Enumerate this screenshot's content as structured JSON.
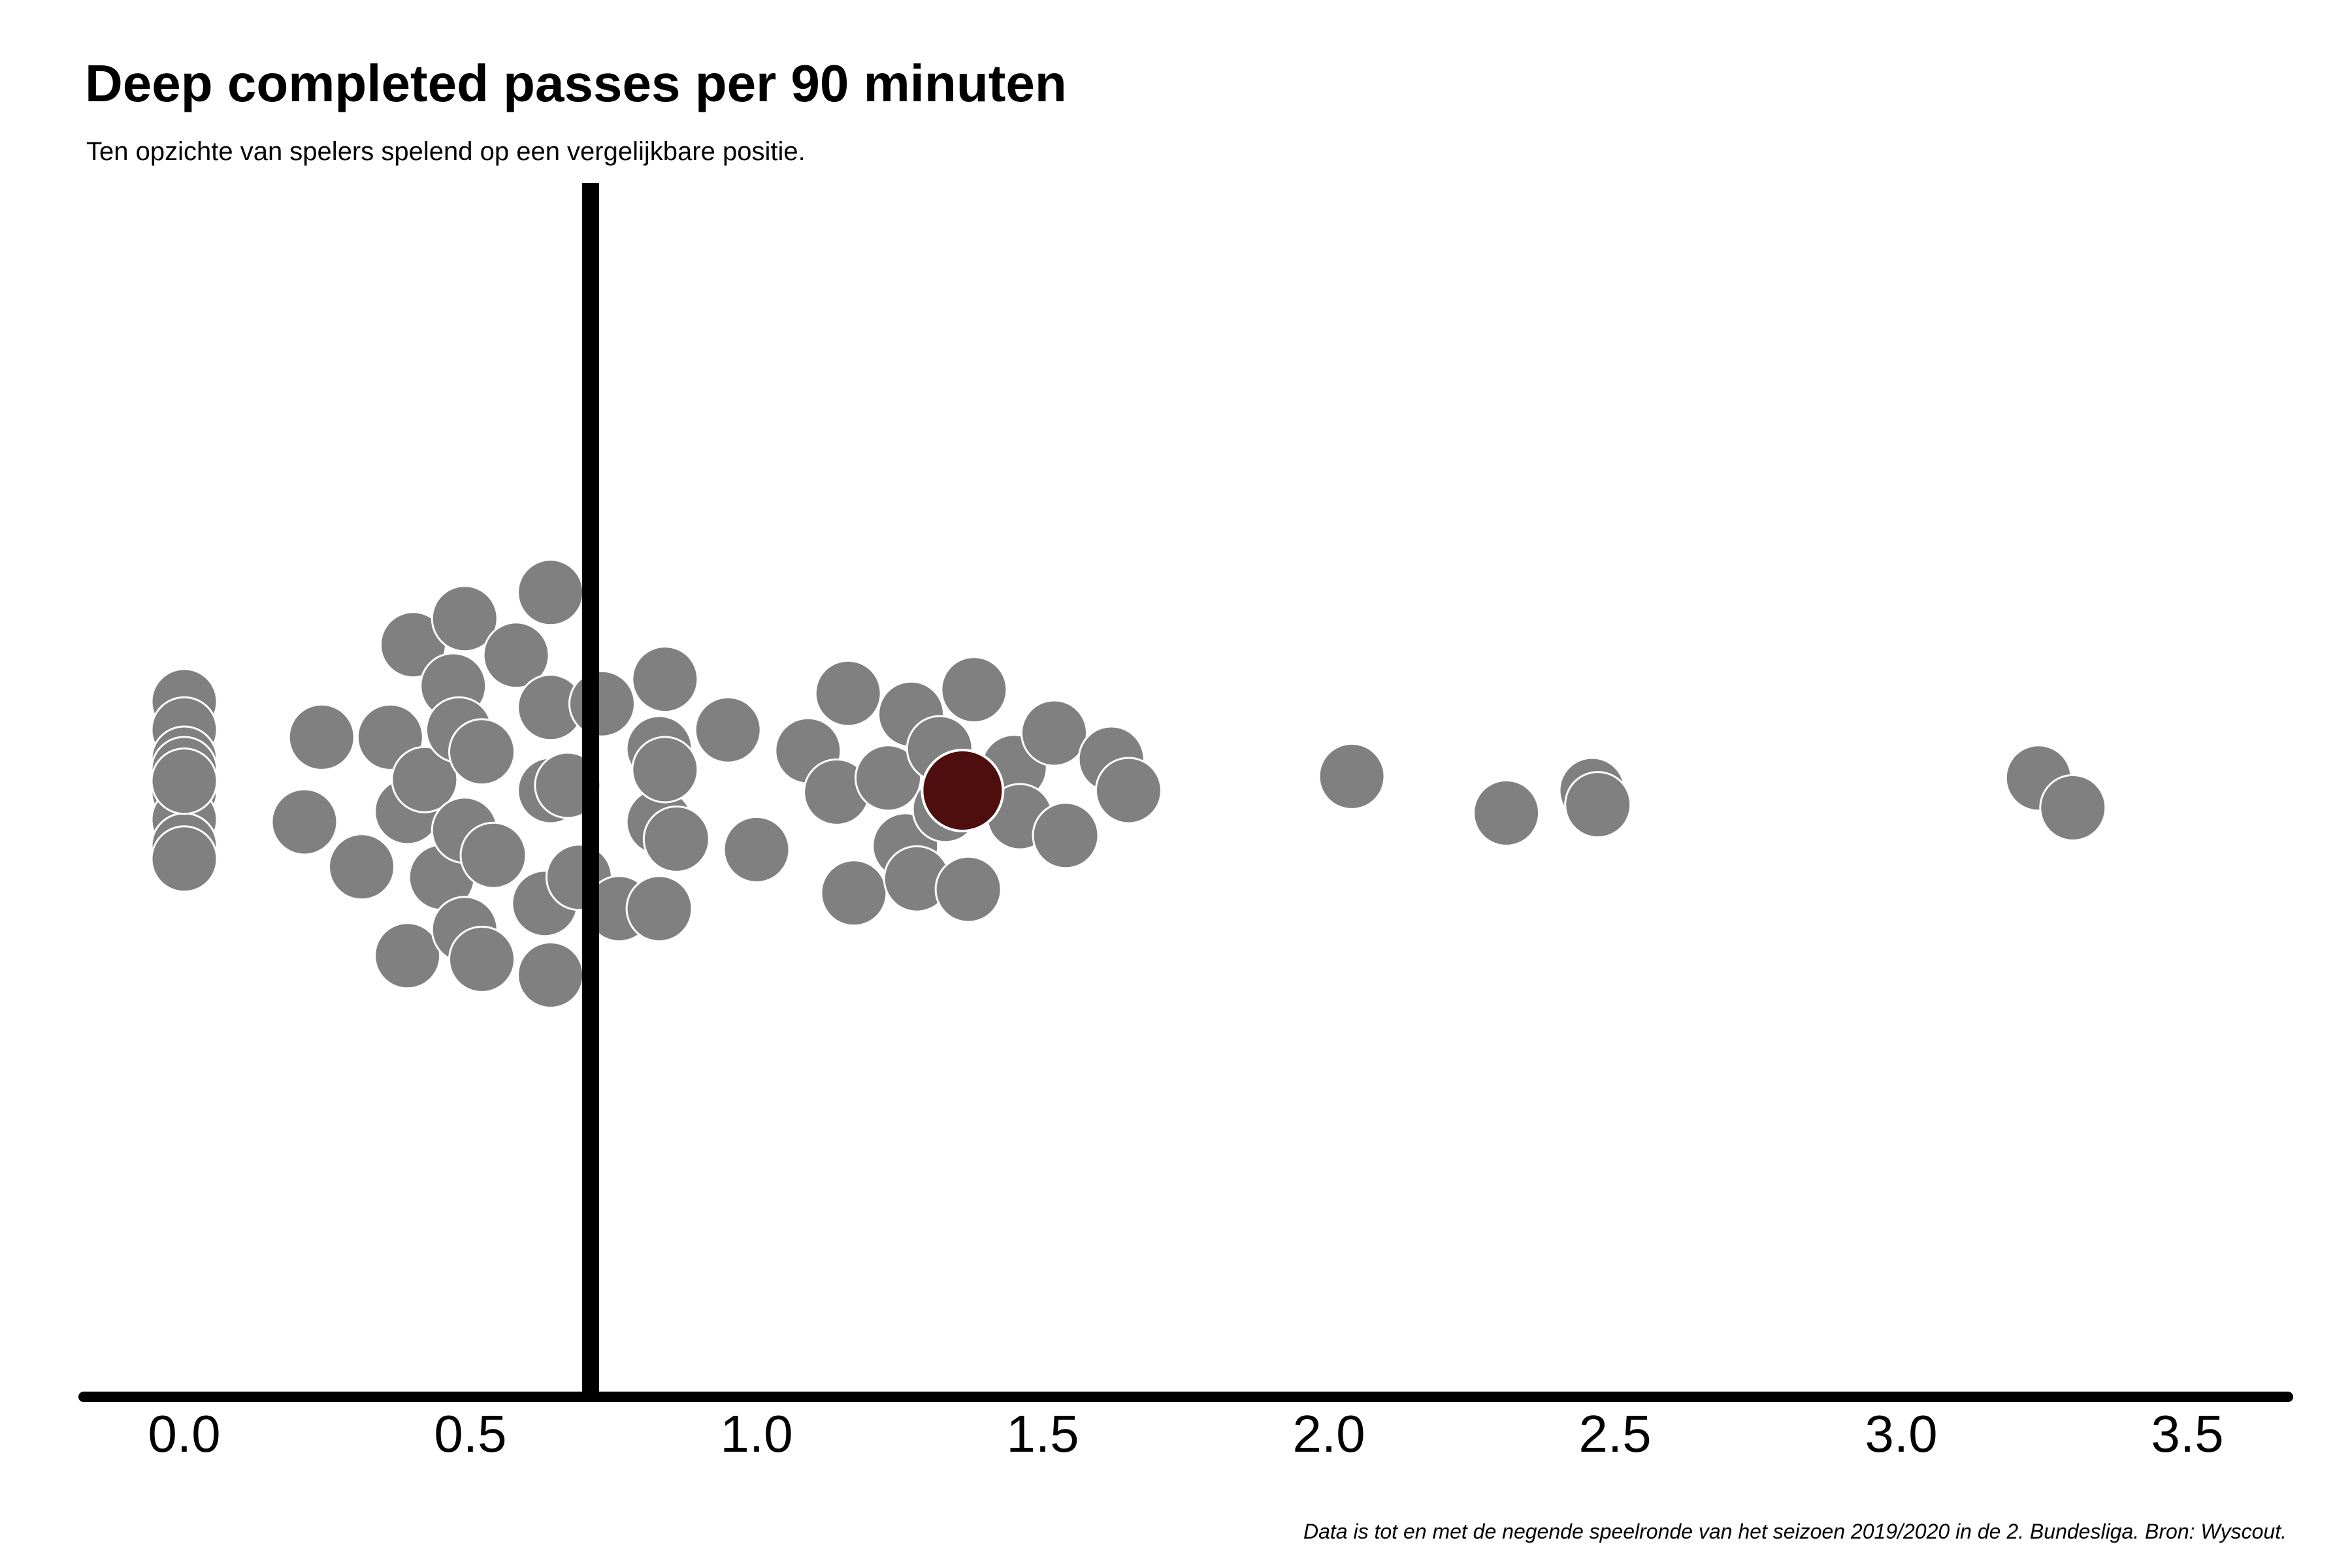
{
  "chart_data": {
    "type": "scatter",
    "subtype": "beeswarm",
    "title": "Deep completed passes per 90 minuten",
    "subtitle": "Ten opzichte van spelers spelend op een vergelijkbare positie.",
    "caption": "Data is tot en met de negende speelronde van het seizoen 2019/2020 in de 2. Bundesliga. Bron: Wyscout.",
    "xlabel": "",
    "ylabel": "",
    "xlim": [
      -0.17,
      3.65
    ],
    "x_ticks": [
      0.0,
      0.5,
      1.0,
      1.5,
      2.0,
      2.5,
      3.0,
      3.5
    ],
    "x_tick_labels": [
      "0.0",
      "0.5",
      "1.0",
      "1.5",
      "2.0",
      "2.5",
      "3.0",
      "3.5"
    ],
    "grid": false,
    "reference_line_x": 0.71,
    "colors": {
      "points": "#808080",
      "highlight": "#4f0e0e",
      "reference": "#000000",
      "axis": "#000000"
    },
    "highlight_value": 1.36,
    "points": [
      {
        "x": 0.0,
        "y": 1.7
      },
      {
        "x": 0.0,
        "y": 1.16
      },
      {
        "x": 0.0,
        "y": 0.6
      },
      {
        "x": 0.0,
        "y": 0.4
      },
      {
        "x": 0.0,
        "y": -0.03
      },
      {
        "x": 0.0,
        "y": -0.56
      },
      {
        "x": 0.0,
        "y": -1.06
      },
      {
        "x": 0.0,
        "y": -1.31
      },
      {
        "x": 0.0,
        "y": 0.18
      },
      {
        "x": 0.21,
        "y": -0.6
      },
      {
        "x": 0.24,
        "y": 1.02
      },
      {
        "x": 0.31,
        "y": -1.46
      },
      {
        "x": 0.36,
        "y": 1.02
      },
      {
        "x": 0.39,
        "y": -3.16
      },
      {
        "x": 0.39,
        "y": -0.4
      },
      {
        "x": 0.42,
        "y": 0.21
      },
      {
        "x": 0.4,
        "y": 2.79
      },
      {
        "x": 0.45,
        "y": -1.66
      },
      {
        "x": 0.47,
        "y": 2.0
      },
      {
        "x": 0.48,
        "y": 1.16
      },
      {
        "x": 0.49,
        "y": -0.76
      },
      {
        "x": 0.49,
        "y": -2.66
      },
      {
        "x": 0.49,
        "y": 3.29
      },
      {
        "x": 0.52,
        "y": 0.74
      },
      {
        "x": 0.52,
        "y": -3.23
      },
      {
        "x": 0.54,
        "y": -1.24
      },
      {
        "x": 0.58,
        "y": 2.59
      },
      {
        "x": 0.63,
        "y": -2.16
      },
      {
        "x": 0.64,
        "y": 0.0
      },
      {
        "x": 0.64,
        "y": 1.59
      },
      {
        "x": 0.64,
        "y": 3.79
      },
      {
        "x": 0.64,
        "y": -3.53
      },
      {
        "x": 0.67,
        "y": 0.1
      },
      {
        "x": 0.69,
        "y": -1.66
      },
      {
        "x": 0.73,
        "y": 1.66
      },
      {
        "x": 0.76,
        "y": -2.26
      },
      {
        "x": 0.83,
        "y": 0.8
      },
      {
        "x": 0.83,
        "y": -0.6
      },
      {
        "x": 0.83,
        "y": -2.26
      },
      {
        "x": 0.84,
        "y": 2.13
      },
      {
        "x": 0.84,
        "y": 0.4
      },
      {
        "x": 0.86,
        "y": -0.93
      },
      {
        "x": 0.95,
        "y": 1.16
      },
      {
        "x": 1.0,
        "y": -1.13
      },
      {
        "x": 1.09,
        "y": 0.76
      },
      {
        "x": 1.14,
        "y": -0.03
      },
      {
        "x": 1.16,
        "y": 1.86
      },
      {
        "x": 1.17,
        "y": -1.96
      },
      {
        "x": 1.23,
        "y": 0.24
      },
      {
        "x": 1.26,
        "y": -1.06
      },
      {
        "x": 1.27,
        "y": 1.46
      },
      {
        "x": 1.28,
        "y": -1.69
      },
      {
        "x": 1.32,
        "y": 0.8
      },
      {
        "x": 1.33,
        "y": -0.36
      },
      {
        "x": 1.37,
        "y": -1.89
      },
      {
        "x": 1.38,
        "y": 1.93
      },
      {
        "x": 1.45,
        "y": 0.44
      },
      {
        "x": 1.46,
        "y": -0.5
      },
      {
        "x": 1.52,
        "y": 1.1
      },
      {
        "x": 1.54,
        "y": -0.86
      },
      {
        "x": 1.62,
        "y": 0.6
      },
      {
        "x": 1.65,
        "y": 0.0
      },
      {
        "x": 2.04,
        "y": 0.27
      },
      {
        "x": 2.31,
        "y": -0.43
      },
      {
        "x": 2.46,
        "y": 0.0
      },
      {
        "x": 2.47,
        "y": -0.27
      },
      {
        "x": 3.24,
        "y": 0.24
      },
      {
        "x": 3.3,
        "y": -0.33
      }
    ]
  }
}
